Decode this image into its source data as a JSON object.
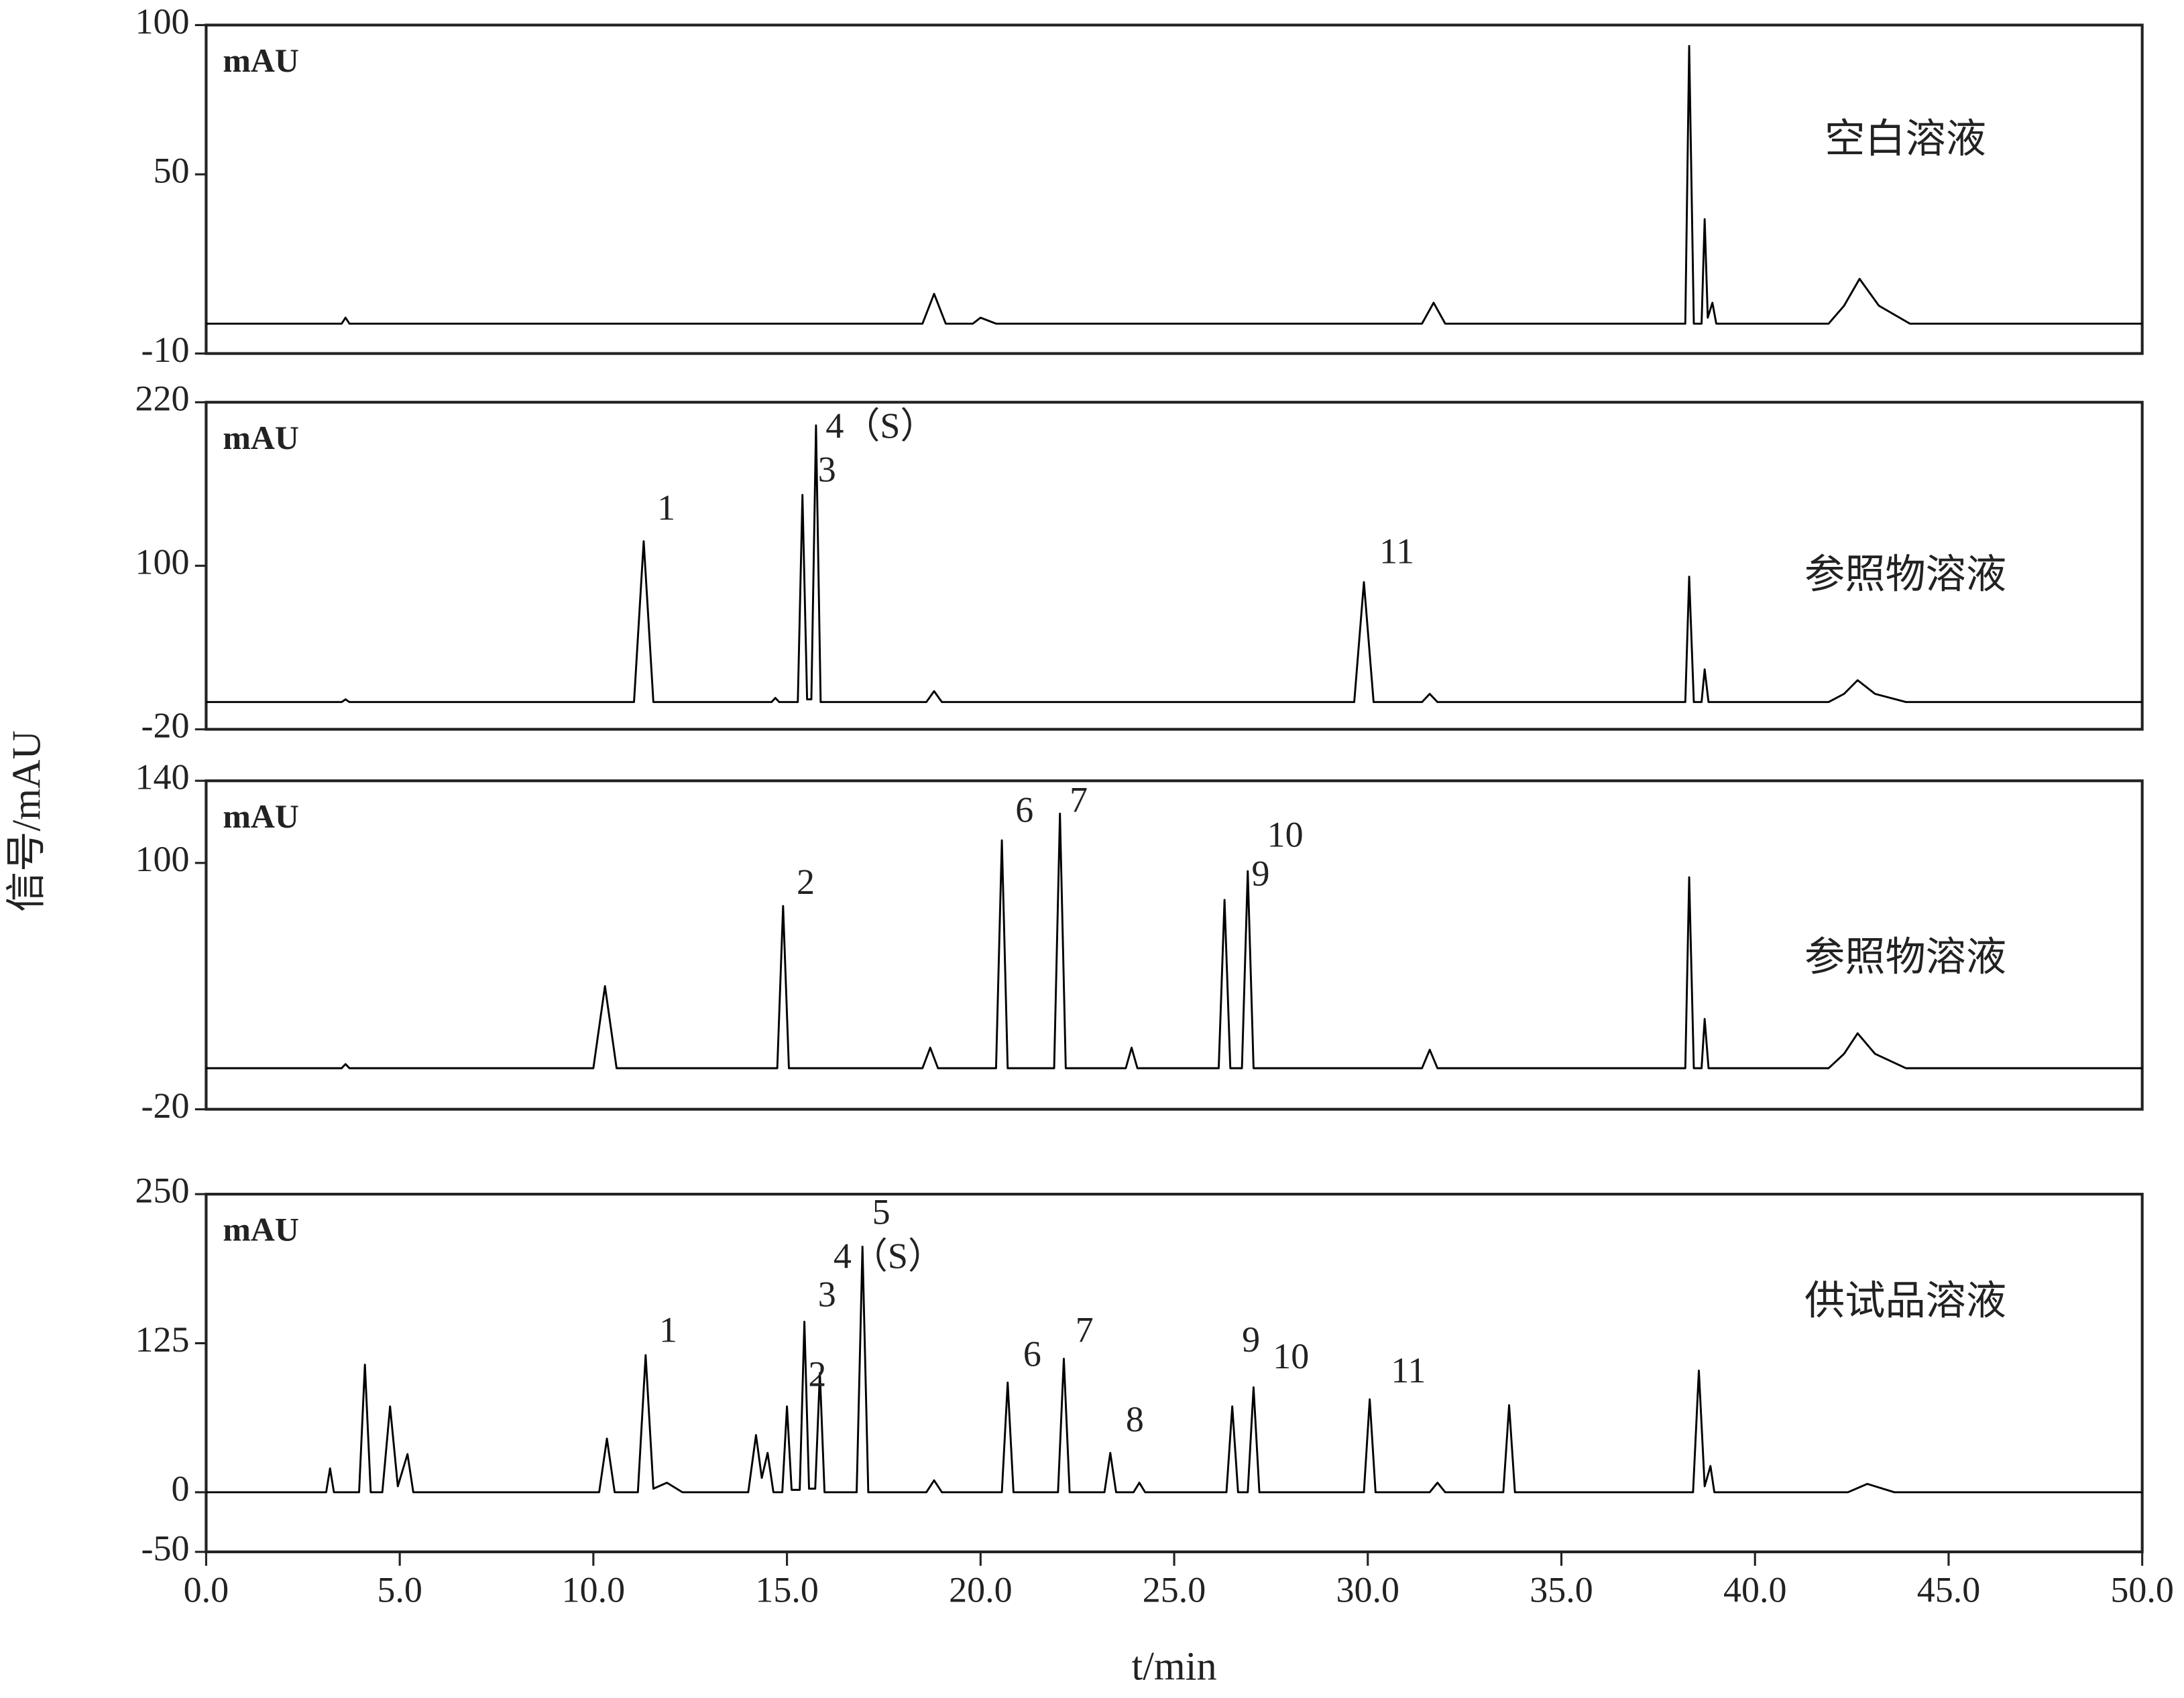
{
  "ylabel": "信号/mAU",
  "chart_data": [
    {
      "type": "line",
      "label": "空白溶液",
      "unit": "mAU",
      "color": "#000000",
      "xlim": [
        0,
        50
      ],
      "ylim": [
        -10,
        100
      ],
      "yticks": [
        -10,
        50,
        100
      ],
      "x": [
        0,
        3.5,
        3.6,
        3.7,
        18.5,
        18.8,
        19.1,
        19.8,
        20.0,
        20.4,
        31.4,
        31.7,
        32.0,
        38.2,
        38.3,
        38.42,
        38.62,
        38.7,
        38.78,
        38.9,
        39.0,
        41.9,
        42.3,
        42.7,
        43.2,
        44.0,
        50
      ],
      "values": [
        0,
        0,
        2,
        0,
        0,
        10,
        0,
        0,
        2,
        0,
        0,
        7,
        0,
        0,
        93,
        0,
        0,
        35,
        2,
        7,
        0,
        0,
        6,
        15,
        6,
        0,
        0
      ],
      "annotations": []
    },
    {
      "type": "line",
      "label": "参照物溶液",
      "unit": "mAU",
      "color": "#000000",
      "xlim": [
        0,
        50
      ],
      "ylim": [
        -20,
        220
      ],
      "yticks": [
        -20,
        100,
        220
      ],
      "x": [
        0,
        3.5,
        3.6,
        3.7,
        11.05,
        11.3,
        11.55,
        14.6,
        14.7,
        14.8,
        15.28,
        15.4,
        15.52,
        15.63,
        15.75,
        15.87,
        18.6,
        18.8,
        19.0,
        29.65,
        29.9,
        30.15,
        31.4,
        31.6,
        31.8,
        38.2,
        38.3,
        38.42,
        38.62,
        38.7,
        38.8,
        41.9,
        42.3,
        42.65,
        43.1,
        43.9,
        50
      ],
      "values": [
        0,
        0,
        2,
        0,
        0,
        118,
        0,
        0,
        3,
        0,
        0,
        152,
        2,
        2,
        203,
        0,
        0,
        8,
        0,
        0,
        88,
        0,
        0,
        6,
        0,
        0,
        92,
        0,
        0,
        24,
        0,
        0,
        6,
        16,
        6,
        0,
        0
      ],
      "annotations": [
        {
          "text": "1",
          "x": 11.65,
          "y": 140
        },
        {
          "text": "3",
          "x": 15.8,
          "y": 168
        },
        {
          "text": "4（S）",
          "x": 16.0,
          "y": 200
        },
        {
          "text": "11",
          "x": 30.3,
          "y": 108
        }
      ]
    },
    {
      "type": "line",
      "label": "参照物溶液",
      "unit": "mAU",
      "color": "#000000",
      "xlim": [
        0,
        50
      ],
      "ylim": [
        -20,
        140
      ],
      "yticks": [
        -20,
        100,
        140
      ],
      "x": [
        0,
        3.5,
        3.6,
        3.7,
        10.0,
        10.3,
        10.6,
        14.75,
        14.9,
        15.05,
        18.5,
        18.7,
        18.9,
        20.4,
        20.55,
        20.7,
        21.9,
        22.05,
        22.2,
        23.75,
        23.9,
        24.05,
        26.15,
        26.3,
        26.45,
        26.75,
        26.9,
        27.05,
        31.4,
        31.6,
        31.8,
        38.2,
        38.3,
        38.42,
        38.62,
        38.7,
        38.8,
        41.9,
        42.3,
        42.65,
        43.1,
        43.9,
        50
      ],
      "values": [
        0,
        0,
        2,
        0,
        0,
        40,
        0,
        0,
        79,
        0,
        0,
        10,
        0,
        0,
        111,
        0,
        0,
        124,
        0,
        0,
        10,
        0,
        0,
        82,
        0,
        0,
        96,
        0,
        0,
        9,
        0,
        0,
        93,
        0,
        0,
        24,
        0,
        0,
        7,
        17,
        7,
        0,
        0
      ],
      "annotations": [
        {
          "text": "2",
          "x": 15.25,
          "y": 89
        },
        {
          "text": "6",
          "x": 20.9,
          "y": 124
        },
        {
          "text": "7",
          "x": 22.3,
          "y": 129
        },
        {
          "text": "9",
          "x": 27.0,
          "y": 93
        },
        {
          "text": "10",
          "x": 27.4,
          "y": 112
        }
      ]
    },
    {
      "type": "line",
      "label": "供试品溶液",
      "unit": "mAU",
      "color": "#000000",
      "xlim": [
        0,
        50
      ],
      "ylim": [
        -50,
        250
      ],
      "yticks": [
        -50,
        0,
        125,
        250
      ],
      "xticks": [
        {
          "value": 0,
          "label": "0.0"
        },
        {
          "value": 5,
          "label": "5.0"
        },
        {
          "value": 10,
          "label": "10.0"
        },
        {
          "value": 15,
          "label": "15.0"
        },
        {
          "value": 20,
          "label": "20.0"
        },
        {
          "value": 25,
          "label": "25.0"
        },
        {
          "value": 30,
          "label": "30.0"
        },
        {
          "value": 35,
          "label": "35.0"
        },
        {
          "value": 40,
          "label": "40.0"
        },
        {
          "value": 45,
          "label": "45.0"
        },
        {
          "value": 50,
          "label": "50.0"
        }
      ],
      "xlabel": "t/min",
      "x": [
        0,
        3.1,
        3.2,
        3.3,
        3.95,
        4.1,
        4.25,
        4.55,
        4.75,
        4.95,
        5.2,
        5.35,
        10.15,
        10.35,
        10.55,
        11.15,
        11.35,
        11.55,
        11.9,
        12.3,
        14.0,
        14.2,
        14.35,
        14.5,
        14.65,
        14.88,
        15.0,
        15.12,
        15.33,
        15.45,
        15.57,
        15.73,
        15.85,
        15.97,
        16.8,
        16.95,
        17.1,
        18.6,
        18.8,
        19.0,
        20.55,
        20.7,
        20.85,
        22.0,
        22.15,
        22.3,
        23.2,
        23.35,
        23.5,
        23.95,
        24.1,
        24.25,
        26.35,
        26.5,
        26.65,
        26.9,
        27.05,
        27.2,
        29.9,
        30.05,
        30.2,
        31.6,
        31.8,
        32.0,
        33.5,
        33.65,
        33.8,
        38.4,
        38.55,
        38.7,
        38.85,
        38.95,
        42.4,
        42.9,
        43.6,
        50
      ],
      "values": [
        0,
        0,
        20,
        0,
        0,
        107,
        0,
        0,
        72,
        5,
        32,
        0,
        0,
        45,
        0,
        0,
        115,
        3,
        8,
        0,
        0,
        48,
        12,
        33,
        0,
        0,
        72,
        2,
        2,
        143,
        3,
        3,
        100,
        0,
        0,
        206,
        0,
        0,
        10,
        0,
        0,
        92,
        0,
        0,
        112,
        0,
        0,
        33,
        0,
        0,
        8,
        0,
        0,
        72,
        0,
        0,
        88,
        0,
        0,
        78,
        0,
        0,
        8,
        0,
        0,
        73,
        0,
        0,
        102,
        5,
        22,
        0,
        0,
        7,
        0,
        0
      ],
      "annotations": [
        {
          "text": "1",
          "x": 11.7,
          "y": 133
        },
        {
          "text": "2",
          "x": 15.55,
          "y": 96
        },
        {
          "text": "3",
          "x": 15.8,
          "y": 163
        },
        {
          "text": "4（S）",
          "x": 16.2,
          "y": 195
        },
        {
          "text": "5",
          "x": 17.2,
          "y": 232
        },
        {
          "text": "6",
          "x": 21.1,
          "y": 113
        },
        {
          "text": "7",
          "x": 22.45,
          "y": 133
        },
        {
          "text": "8",
          "x": 23.75,
          "y": 58
        },
        {
          "text": "9",
          "x": 26.75,
          "y": 125
        },
        {
          "text": "10",
          "x": 27.55,
          "y": 111
        },
        {
          "text": "11",
          "x": 30.6,
          "y": 99
        }
      ]
    }
  ]
}
